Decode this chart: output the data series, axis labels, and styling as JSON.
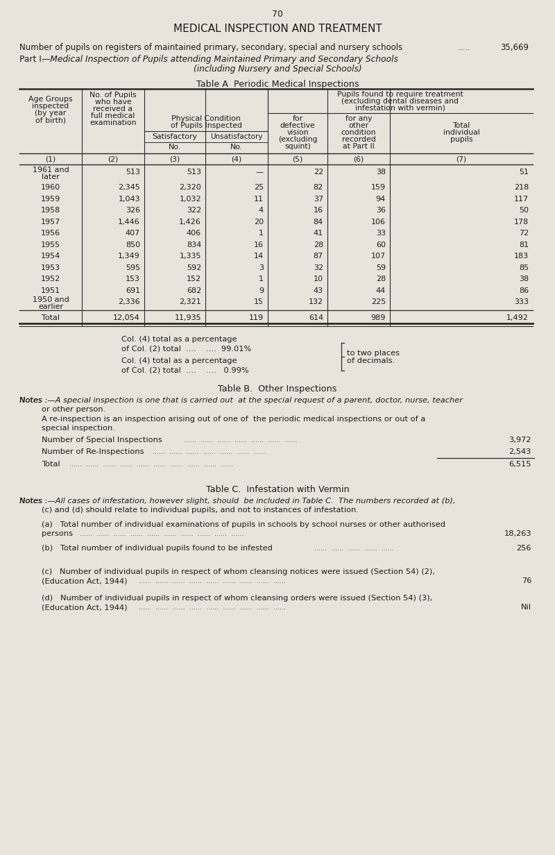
{
  "page_number": "70",
  "title": "MEDICAL INSPECTION AND TREATMENT",
  "subtitle1": "Number of pupils on registers of maintained primary, secondary, special and nursery schools",
  "subtitle1_dots": ".....",
  "subtitle1_value": "35,669",
  "subtitle2_part1": "Part I.",
  "subtitle2_italic": "—Medical Inspection of Pupils attending Maintained Primary and Secondary Schools",
  "subtitle2_italic2": "(including Nursery and Special Schools)",
  "table_a_title": "Table A  Periodic Medical Inspections",
  "rows": [
    {
      "age": "1961 and\nlater",
      "col2": "513",
      "col3": "513",
      "col4": "—",
      "col5": "22",
      "col6": "38",
      "col7": "51"
    },
    {
      "age": "1960",
      "col2": "2,345",
      "col3": "2,320",
      "col4": "25",
      "col5": "82",
      "col6": "159",
      "col7": "218"
    },
    {
      "age": "1959",
      "col2": "1,043",
      "col3": "1,032",
      "col4": "11",
      "col5": "37",
      "col6": "94",
      "col7": "117"
    },
    {
      "age": "1958",
      "col2": "326",
      "col3": "322",
      "col4": "4",
      "col5": "16",
      "col6": "36",
      "col7": "50"
    },
    {
      "age": "1957",
      "col2": "1,446",
      "col3": "1,426",
      "col4": "20",
      "col5": "84",
      "col6": "106",
      "col7": "178"
    },
    {
      "age": "1956",
      "col2": "407",
      "col3": "406",
      "col4": "1",
      "col5": "41",
      "col6": "33",
      "col7": "72"
    },
    {
      "age": "1955",
      "col2": "850",
      "col3": "834",
      "col4": "16",
      "col5": "28",
      "col6": "60",
      "col7": "81"
    },
    {
      "age": "1954",
      "col2": "1,349",
      "col3": "1,335",
      "col4": "14",
      "col5": "87",
      "col6": "107",
      "col7": "183"
    },
    {
      "age": "1953",
      "col2": "595",
      "col3": "592",
      "col4": "3",
      "col5": "32",
      "col6": "59",
      "col7": "85"
    },
    {
      "age": "1952",
      "col2": "153",
      "col3": "152",
      "col4": "1",
      "col5": "10",
      "col6": "28",
      "col7": "38"
    },
    {
      "age": "1951",
      "col2": "691",
      "col3": "682",
      "col4": "9",
      "col5": "43",
      "col6": "44",
      "col7": "86"
    },
    {
      "age": "1950 and\nearlier",
      "col2": "2,336",
      "col3": "2,321",
      "col4": "15",
      "col5": "132",
      "col6": "225",
      "col7": "333"
    },
    {
      "age": "Total",
      "col2": "12,054",
      "col3": "11,935",
      "col4": "119",
      "col5": "614",
      "col6": "989",
      "col7": "1,492"
    }
  ],
  "table_b_title": "Table B.  Other Inspections",
  "table_c_title": "Table C.  Infestation with Vermin",
  "bg_color": "#e8e4dc",
  "text_color": "#1a1a1a",
  "line_color": "#2a2a2a"
}
